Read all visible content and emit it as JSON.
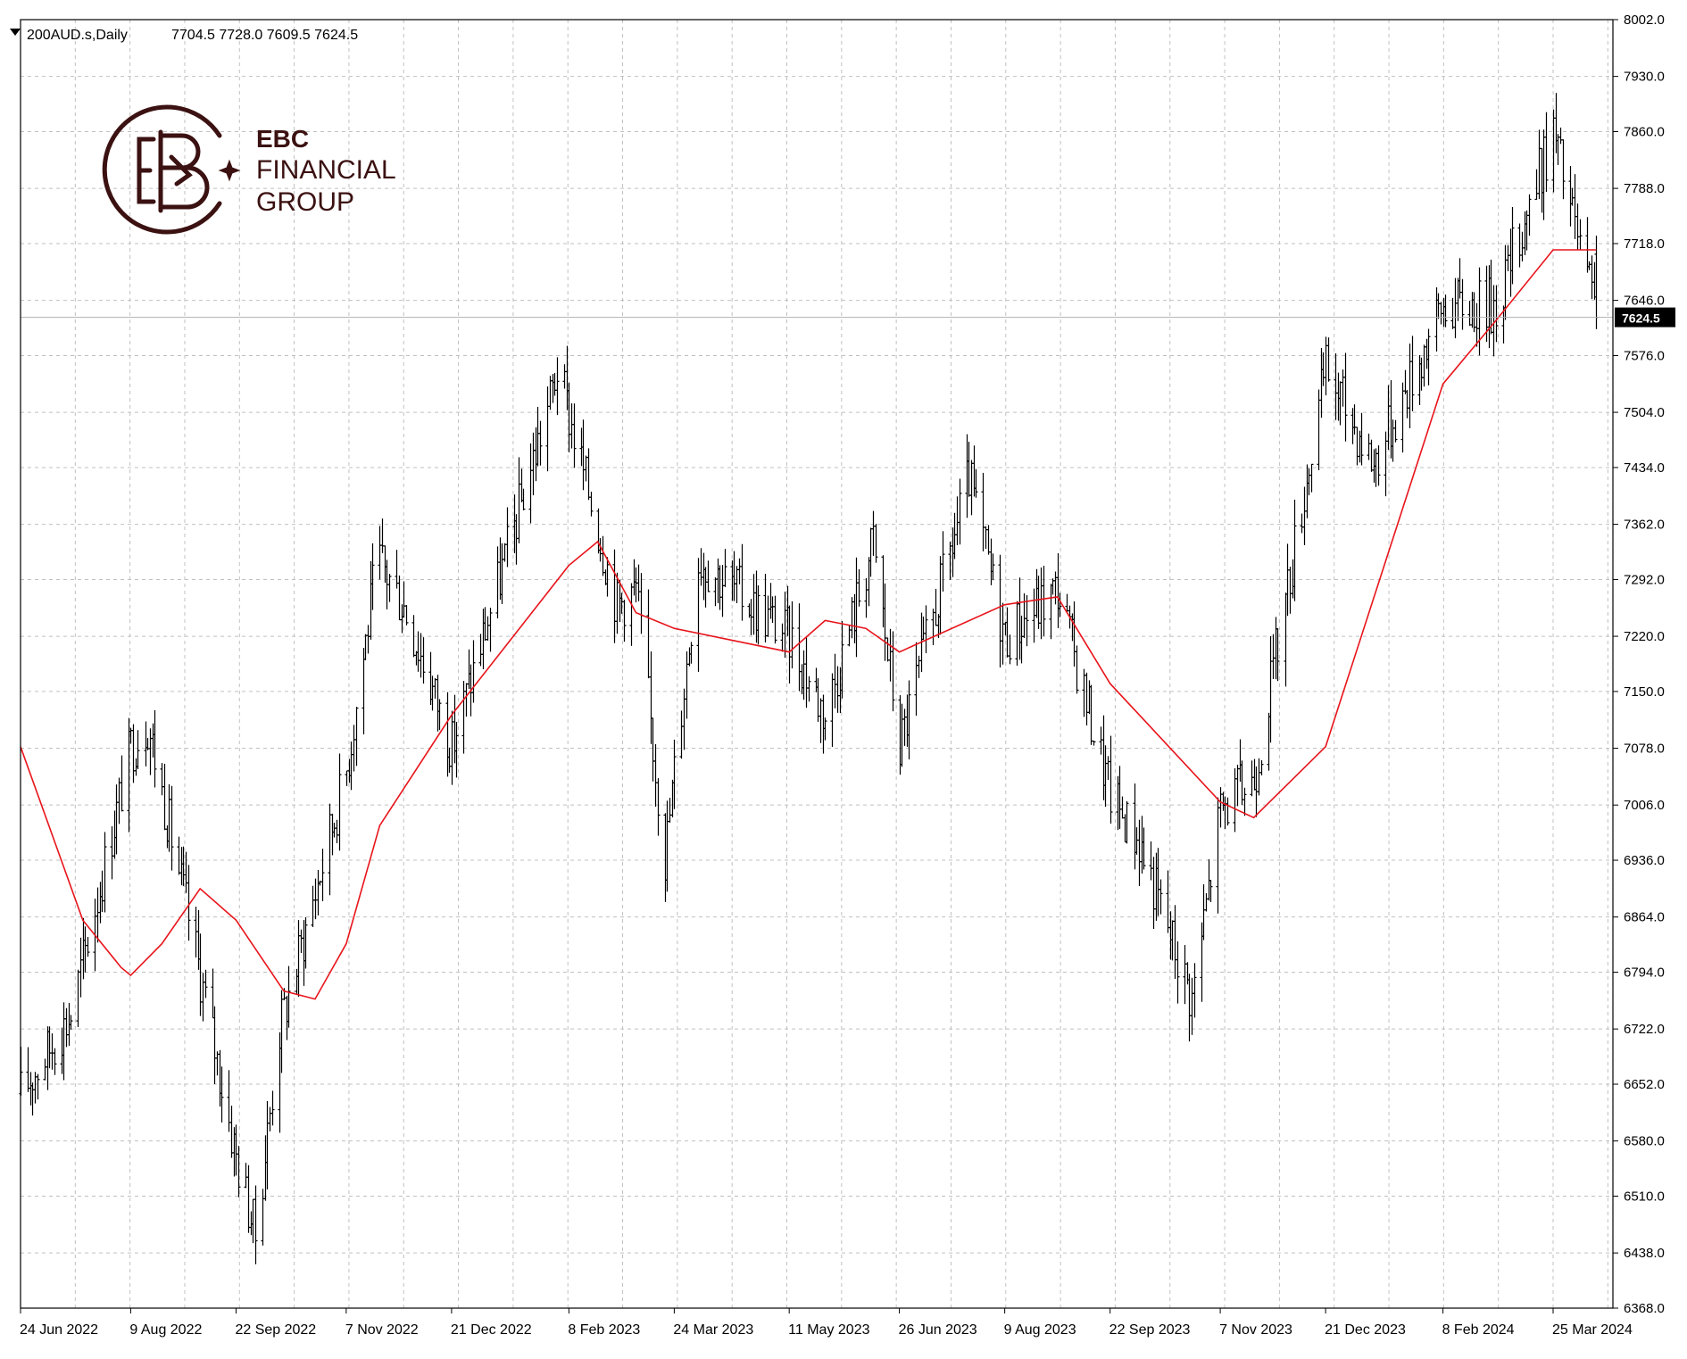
{
  "header": {
    "symbol_label": "200AUD.s,Daily",
    "ohlc_label": "7704.5 7728.0 7609.5 7624.5"
  },
  "logo": {
    "line1": "EBC",
    "line2": "FINANCIAL",
    "line3": "GROUP",
    "color": "#3b1111"
  },
  "colors": {
    "bars": "#000000",
    "ma_line": "#e8141b",
    "grid": "#c0c0c0",
    "price_tag_bg": "#000000",
    "price_tag_text": "#ffffff"
  },
  "chart_data": {
    "type": "line",
    "title": "",
    "xlabel": "",
    "ylabel": "",
    "instrument": "200AUD.s",
    "timeframe": "Daily",
    "current_price": 7624.5,
    "last_bar": {
      "open": 7704.5,
      "high": 7728.0,
      "low": 7609.5,
      "close": 7624.5
    },
    "ylim": [
      6368.0,
      8002.0
    ],
    "y_ticks": [
      "8002.0",
      "7930.0",
      "7860.0",
      "7788.0",
      "7718.0",
      "7646.0",
      "7576.0",
      "7504.0",
      "7434.0",
      "7362.0",
      "7292.0",
      "7220.0",
      "7150.0",
      "7078.0",
      "7006.0",
      "6936.0",
      "6864.0",
      "6794.0",
      "6722.0",
      "6652.0",
      "6580.0",
      "6510.0",
      "6438.0",
      "6368.0"
    ],
    "x_ticks": [
      "24 Jun 2022",
      "9 Aug 2022",
      "22 Sep 2022",
      "7 Nov 2022",
      "21 Dec 2022",
      "8 Feb 2023",
      "24 Mar 2023",
      "11 May 2023",
      "26 Jun 2023",
      "9 Aug 2023",
      "22 Sep 2023",
      "7 Nov 2023",
      "21 Dec 2023",
      "8 Feb 2024",
      "25 Mar 2024"
    ],
    "grid": true,
    "legend": "none",
    "series": [
      {
        "kind": "price-range-bars",
        "anchors": [
          {
            "date": "24 Jun 2022",
            "close": 6640
          },
          {
            "date": "15 Jul 2022",
            "close": 6740
          },
          {
            "date": "9 Aug 2022",
            "close": 7080
          },
          {
            "date": "16 Aug 2022",
            "close": 7110
          },
          {
            "date": "5 Sep 2022",
            "close": 6820
          },
          {
            "date": "22 Sep 2022",
            "close": 6560
          },
          {
            "date": "30 Sep 2022",
            "close": 6460
          },
          {
            "date": "10 Oct 2022",
            "close": 6720
          },
          {
            "date": "7 Nov 2022",
            "close": 7050
          },
          {
            "date": "20 Nov 2022",
            "close": 7320
          },
          {
            "date": "1 Dec 2022",
            "close": 7260
          },
          {
            "date": "21 Dec 2022",
            "close": 7080
          },
          {
            "date": "31 Jan 2023",
            "close": 7520
          },
          {
            "date": "3 Feb 2023",
            "close": 7560
          },
          {
            "date": "28 Feb 2023",
            "close": 7260
          },
          {
            "date": "8 Mar 2023",
            "close": 7280
          },
          {
            "date": "20 Mar 2023",
            "close": 6940
          },
          {
            "date": "3 Apr 2023",
            "close": 7320
          },
          {
            "date": "11 May 2023",
            "close": 7220
          },
          {
            "date": "26 May 2023",
            "close": 7120
          },
          {
            "date": "15 Jun 2023",
            "close": 7340
          },
          {
            "date": "26 Jun 2023",
            "close": 7080
          },
          {
            "date": "25 Jul 2023",
            "close": 7420
          },
          {
            "date": "9 Aug 2023",
            "close": 7220
          },
          {
            "date": "31 Aug 2023",
            "close": 7280
          },
          {
            "date": "22 Sep 2023",
            "close": 7020
          },
          {
            "date": "4 Oct 2023",
            "close": 6960
          },
          {
            "date": "26 Oct 2023",
            "close": 6760
          },
          {
            "date": "7 Nov 2023",
            "close": 7000
          },
          {
            "date": "21 Nov 2023",
            "close": 7040
          },
          {
            "date": "21 Dec 2023",
            "close": 7560
          },
          {
            "date": "10 Jan 2024",
            "close": 7440
          },
          {
            "date": "8 Feb 2024",
            "close": 7640
          },
          {
            "date": "1 Mar 2024",
            "close": 7640
          },
          {
            "date": "25 Mar 2024",
            "close": 7860
          },
          {
            "date": "12 Apr 2024",
            "close": 7620
          }
        ]
      },
      {
        "kind": "moving-average",
        "points": [
          {
            "date": "24 Jun 2022",
            "value": 7080
          },
          {
            "date": "20 Jul 2022",
            "value": 6860
          },
          {
            "date": "5 Aug 2022",
            "value": 6800
          },
          {
            "date": "9 Aug 2022",
            "value": 6790
          },
          {
            "date": "22 Aug 2022",
            "value": 6830
          },
          {
            "date": "7 Sep 2022",
            "value": 6900
          },
          {
            "date": "22 Sep 2022",
            "value": 6860
          },
          {
            "date": "12 Oct 2022",
            "value": 6770
          },
          {
            "date": "25 Oct 2022",
            "value": 6760
          },
          {
            "date": "7 Nov 2022",
            "value": 6830
          },
          {
            "date": "21 Nov 2022",
            "value": 6980
          },
          {
            "date": "21 Dec 2022",
            "value": 7120
          },
          {
            "date": "8 Feb 2023",
            "value": 7310
          },
          {
            "date": "20 Feb 2023",
            "value": 7340
          },
          {
            "date": "8 Mar 2023",
            "value": 7250
          },
          {
            "date": "24 Mar 2023",
            "value": 7230
          },
          {
            "date": "11 May 2023",
            "value": 7200
          },
          {
            "date": "26 May 2023",
            "value": 7240
          },
          {
            "date": "12 Jun 2023",
            "value": 7230
          },
          {
            "date": "26 Jun 2023",
            "value": 7200
          },
          {
            "date": "9 Aug 2023",
            "value": 7260
          },
          {
            "date": "31 Aug 2023",
            "value": 7270
          },
          {
            "date": "22 Sep 2023",
            "value": 7160
          },
          {
            "date": "7 Nov 2023",
            "value": 7010
          },
          {
            "date": "21 Nov 2023",
            "value": 6990
          },
          {
            "date": "21 Dec 2023",
            "value": 7080
          },
          {
            "date": "8 Feb 2024",
            "value": 7540
          },
          {
            "date": "1 Mar 2024",
            "value": 7620
          },
          {
            "date": "25 Mar 2024",
            "value": 7710
          },
          {
            "date": "12 Apr 2024",
            "value": 7710
          }
        ]
      }
    ]
  }
}
